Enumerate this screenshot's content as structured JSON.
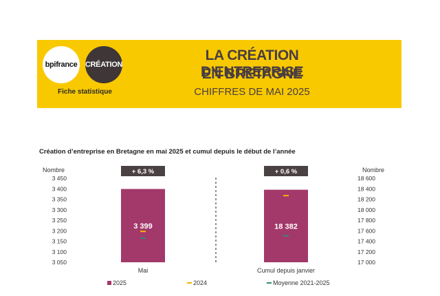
{
  "header": {
    "logo_left": "bpifrance",
    "logo_right": "CRÉATION",
    "fiche": "Fiche statistique",
    "title_line1": "LA CRÉATION D’ENTREPRISE",
    "title_line2": "EN BRETAGNE",
    "subtitle": "CHIFFRES DE MAI 2025"
  },
  "colors": {
    "banner": "#f9c900",
    "bar_2025": "#a3386a",
    "mark_2024": "#f5b400",
    "mark_moyenne": "#2e8b7a",
    "badge": "#4a4142"
  },
  "chart_data": {
    "type": "bar",
    "title": "Création d’entreprise en Bretagne en mai 2025 et cumul depuis le début de l’année",
    "categories": [
      "Mai",
      "Cumul depuis janvier"
    ],
    "left_axis": {
      "label": "Nombre",
      "ylim": [
        3050,
        3450
      ],
      "ticks": [
        "3 050",
        "3 100",
        "3 150",
        "3 200",
        "3 250",
        "3 300",
        "3 350",
        "3 400",
        "3 450"
      ]
    },
    "right_axis": {
      "label": "Nombre",
      "ylim": [
        17000,
        18600
      ],
      "ticks": [
        "17 000",
        "17 200",
        "17 400",
        "17 600",
        "17 800",
        "18 000",
        "18 200",
        "18 400",
        "18 600"
      ]
    },
    "series": [
      {
        "name": "2025",
        "kind": "bar",
        "values": [
          3399,
          18382
        ],
        "labels": [
          "3 399",
          "18 382"
        ]
      },
      {
        "name": "2024",
        "kind": "marker",
        "values": [
          3197,
          18270
        ]
      },
      {
        "name": "Moyenne 2021-2025",
        "kind": "marker",
        "values": [
          3165,
          17505
        ]
      }
    ],
    "badges": [
      "+ 6,3 %",
      "+ 0,6 %"
    ],
    "legend_position": "bottom",
    "grid": false
  }
}
